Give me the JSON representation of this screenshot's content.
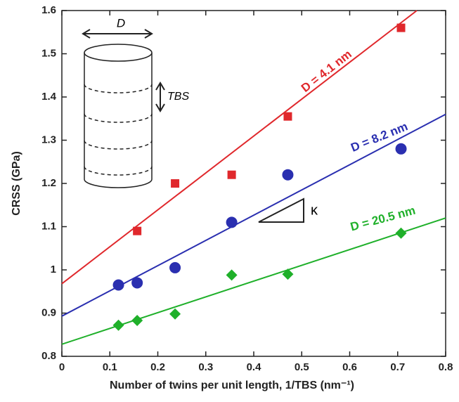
{
  "chart_data": {
    "type": "scatter",
    "x_label": "Number of twins per unit length, 1/TBS (nm⁻¹)",
    "y_label": "CRSS (GPa)",
    "xlim": [
      0,
      0.8
    ],
    "ylim": [
      0.8,
      1.6
    ],
    "xticks": [
      0,
      0.1,
      0.2,
      0.3,
      0.4,
      0.5,
      0.6,
      0.7,
      0.8
    ],
    "yticks": [
      0.8,
      0.9,
      1,
      1.1,
      1.2,
      1.3,
      1.4,
      1.5,
      1.6
    ],
    "series": [
      {
        "name": "D = 4.1 nm",
        "color": "#e0282c",
        "marker": "square",
        "x": [
          0.157,
          0.236,
          0.354,
          0.471,
          0.707
        ],
        "values": [
          1.09,
          1.2,
          1.22,
          1.355,
          1.56
        ],
        "fit": {
          "x": [
            0,
            0.74
          ],
          "values": [
            0.968,
            1.6
          ]
        }
      },
      {
        "name": "D = 8.2 nm",
        "color": "#2a2fb0",
        "marker": "circle",
        "x": [
          0.118,
          0.157,
          0.236,
          0.354,
          0.471,
          0.707
        ],
        "values": [
          0.965,
          0.97,
          1.005,
          1.11,
          1.22,
          1.28
        ],
        "fit": {
          "x": [
            0,
            0.8
          ],
          "values": [
            0.893,
            1.36
          ]
        }
      },
      {
        "name": "D = 20.5 nm",
        "color": "#1fb02a",
        "marker": "diamond",
        "x": [
          0.118,
          0.157,
          0.236,
          0.354,
          0.471,
          0.707
        ],
        "values": [
          0.872,
          0.883,
          0.898,
          0.988,
          0.99,
          1.085
        ],
        "fit": {
          "x": [
            0,
            0.8
          ],
          "values": [
            0.828,
            1.12
          ]
        }
      }
    ],
    "annotations": [
      "D",
      "TBS",
      "κ"
    ]
  }
}
